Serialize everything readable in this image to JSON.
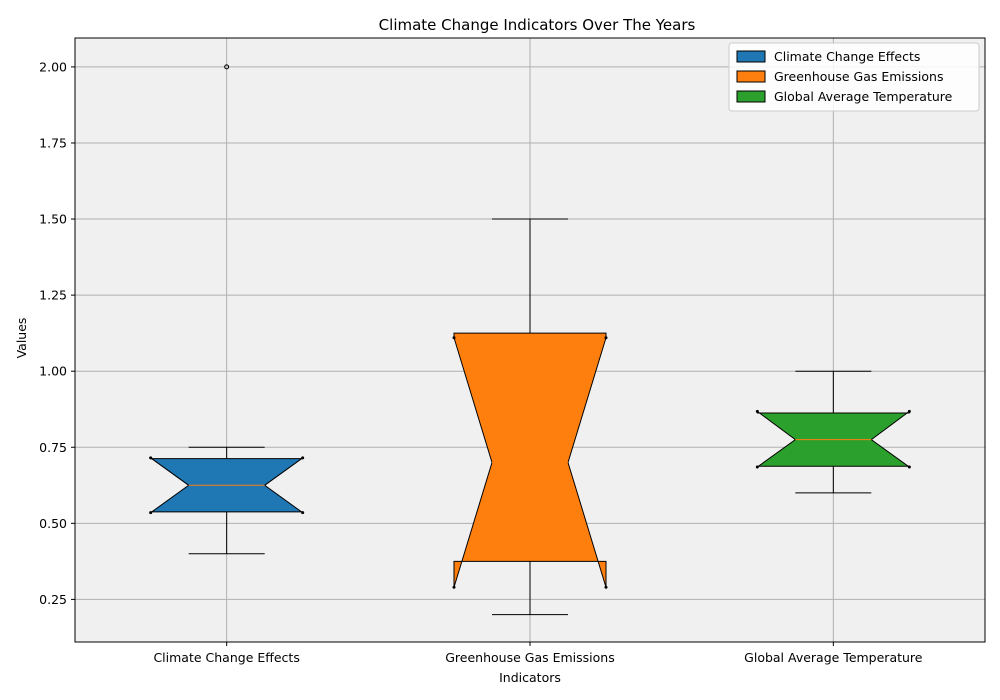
{
  "chart_data": {
    "type": "boxplot",
    "title": "Climate Change Indicators Over The Years",
    "xlabel": "Indicators",
    "ylabel": "Values",
    "ylim": [
      0.11,
      2.095
    ],
    "yticks": [
      0.25,
      0.5,
      0.75,
      1.0,
      1.25,
      1.5,
      1.75,
      2.0
    ],
    "grid": true,
    "legend_position": "top-right",
    "notched": true,
    "series": [
      {
        "name": "Climate Change Effects",
        "color": "#1f77b4",
        "whisker_low": 0.4,
        "q1": 0.5375,
        "median": 0.625,
        "q3": 0.7125,
        "whisker_high": 0.75,
        "notch_low": 0.535,
        "notch_high": 0.715,
        "outliers": [
          2.0
        ]
      },
      {
        "name": "Greenhouse Gas Emissions",
        "color": "#ff7f0e",
        "whisker_low": 0.2,
        "q1": 0.375,
        "median": 0.7,
        "q3": 1.125,
        "whisker_high": 1.5,
        "notch_low": 0.29,
        "notch_high": 1.11,
        "outliers": []
      },
      {
        "name": "Global Average Temperature",
        "color": "#2ca02c",
        "whisker_low": 0.6,
        "q1": 0.6875,
        "median": 0.775,
        "q3": 0.8625,
        "whisker_high": 1.0,
        "notch_low": 0.685,
        "notch_high": 0.868,
        "outliers": []
      }
    ]
  }
}
